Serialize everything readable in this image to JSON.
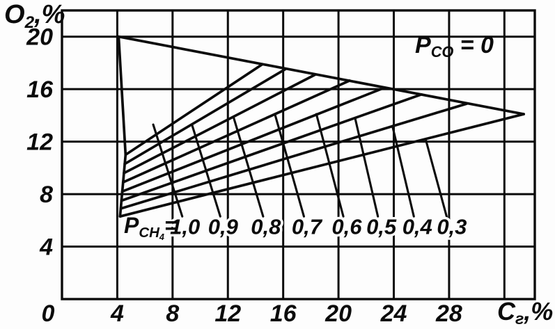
{
  "figure": {
    "y_axis_label": {
      "main": "O",
      "sub": "2",
      "rest": ",%"
    },
    "x_axis_label": {
      "main": "C",
      "sub": "г",
      "rest": ",%"
    },
    "annotation": {
      "main": "P",
      "sub": "CO",
      "rest": " = 0"
    },
    "curve_label_prefix": {
      "main": "P",
      "sub": "CH",
      "subsub": "4",
      "rest": "="
    }
  },
  "chart_data": {
    "type": "line",
    "title": "",
    "xlabel": "Cг,%",
    "ylabel": "O2,%",
    "xlim": [
      0,
      34.2
    ],
    "ylim": [
      0,
      22
    ],
    "grid": true,
    "x_gridlines": [
      4,
      8,
      12,
      16,
      20,
      24,
      28,
      32
    ],
    "y_gridlines": [
      4,
      8,
      12,
      16,
      20
    ],
    "x_tick_values": [
      0,
      4,
      8,
      12,
      16,
      20,
      24,
      28
    ],
    "x_tick_labels": [
      "0",
      "4",
      "8",
      "12",
      "16",
      "20",
      "24",
      "28"
    ],
    "x_tick_dx": [
      -20,
      0,
      0,
      0,
      0,
      0,
      0,
      0
    ],
    "y_tick_values": [
      20,
      16,
      12,
      8,
      4
    ],
    "y_tick_labels": [
      "20",
      "16",
      "12",
      "8",
      "4"
    ],
    "annotation_text": "P_CO = 0",
    "series": [
      {
        "name": "left-boundary",
        "points": [
          [
            4.1,
            20
          ],
          [
            4.6,
            11.0
          ],
          [
            4.2,
            6.3
          ]
        ]
      },
      {
        "name": "upper-boundary",
        "points": [
          [
            4.1,
            20
          ],
          [
            33.4,
            14.1
          ]
        ]
      },
      {
        "name": "lower-boundary-PCH4-1.0",
        "pch4": 1.0,
        "points": [
          [
            4.6,
            11.0
          ],
          [
            14.5,
            17.9
          ]
        ]
      },
      {
        "name": "lower-boundary-PCH4-0.9",
        "pch4": 0.9,
        "points": [
          [
            4.54,
            10.3
          ],
          [
            16.2,
            17.55
          ]
        ]
      },
      {
        "name": "lower-boundary-PCH4-0.8",
        "pch4": 0.8,
        "points": [
          [
            4.48,
            9.6
          ],
          [
            18.3,
            17.1
          ]
        ]
      },
      {
        "name": "lower-boundary-PCH4-0.7",
        "pch4": 0.7,
        "points": [
          [
            4.42,
            8.9
          ],
          [
            20.8,
            16.65
          ]
        ]
      },
      {
        "name": "lower-boundary-PCH4-0.6",
        "pch4": 0.6,
        "points": [
          [
            4.36,
            8.2
          ],
          [
            23.3,
            16.1
          ]
        ]
      },
      {
        "name": "lower-boundary-PCH4-0.5",
        "pch4": 0.5,
        "points": [
          [
            4.3,
            7.5
          ],
          [
            26.0,
            15.6
          ]
        ]
      },
      {
        "name": "lower-boundary-PCH4-0.4",
        "pch4": 0.4,
        "points": [
          [
            4.25,
            6.9
          ],
          [
            29.3,
            14.9
          ]
        ]
      },
      {
        "name": "lower-boundary-PCH4-0.3",
        "pch4": 0.3,
        "points": [
          [
            4.2,
            6.3
          ],
          [
            33.4,
            14.1
          ]
        ]
      }
    ],
    "leader_lines": [
      {
        "label": "1,0",
        "points": [
          [
            6.6,
            13.3
          ],
          [
            8.7,
            6.3
          ]
        ]
      },
      {
        "label": "0,9",
        "points": [
          [
            9.4,
            13.3
          ],
          [
            11.45,
            6.3
          ]
        ]
      },
      {
        "label": "0,8",
        "points": [
          [
            12.4,
            13.9
          ],
          [
            14.55,
            6.3
          ]
        ]
      },
      {
        "label": "0,7",
        "points": [
          [
            15.4,
            14.1
          ],
          [
            17.5,
            6.3
          ]
        ]
      },
      {
        "label": "0,6",
        "points": [
          [
            18.4,
            14.1
          ],
          [
            20.35,
            6.3
          ]
        ]
      },
      {
        "label": "0,5",
        "points": [
          [
            21.2,
            13.8
          ],
          [
            22.85,
            6.3
          ]
        ]
      },
      {
        "label": "0,4",
        "points": [
          [
            23.9,
            13.2
          ],
          [
            25.45,
            6.3
          ]
        ]
      },
      {
        "label": "0,3",
        "points": [
          [
            26.3,
            12.2
          ],
          [
            27.9,
            6.0
          ]
        ]
      }
    ],
    "value_labels": [
      {
        "text": "1,0",
        "x": 8.9
      },
      {
        "text": "0,9",
        "x": 11.65
      },
      {
        "text": "0,8",
        "x": 14.75
      },
      {
        "text": "0,7",
        "x": 17.7
      },
      {
        "text": "0,6",
        "x": 20.6
      },
      {
        "text": "0,5",
        "x": 23.1
      },
      {
        "text": "0,4",
        "x": 25.7
      },
      {
        "text": "0,3",
        "x": 28.2
      }
    ],
    "value_label_baseline_y": 4.95,
    "line_color": "#0b0b0b",
    "background_color": "#fdfdfd"
  }
}
